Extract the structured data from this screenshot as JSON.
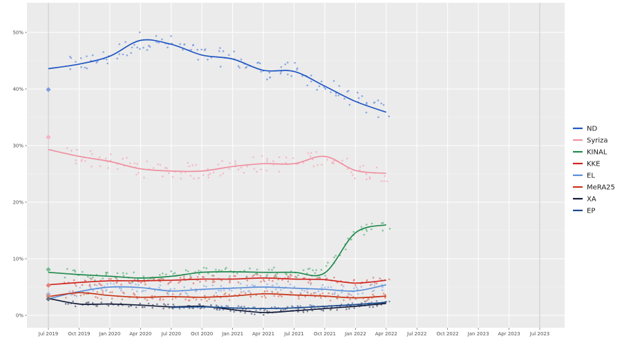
{
  "chart_data": {
    "type": "line",
    "title": "",
    "xlabel": "",
    "ylabel": "",
    "background": "#ebebeb",
    "grid": true,
    "legend_position": "right",
    "x_range": [
      "2019-07",
      "2023-09"
    ],
    "ylim": [
      -1,
      55
    ],
    "x_ticks": [
      {
        "date": "2019-07",
        "label": "Jul 2019"
      },
      {
        "date": "2019-10",
        "label": "Oct 2019"
      },
      {
        "date": "2020-01",
        "label": "Jan 2020"
      },
      {
        "date": "2020-04",
        "label": "Apr 2020"
      },
      {
        "date": "2020-07",
        "label": "Jul 2020"
      },
      {
        "date": "2020-10",
        "label": "Oct 2020"
      },
      {
        "date": "2021-01",
        "label": "Jan 2021"
      },
      {
        "date": "2021-04",
        "label": "Apr 2021"
      },
      {
        "date": "2021-07",
        "label": "Jul 2021"
      },
      {
        "date": "2021-10",
        "label": "Oct 2021"
      },
      {
        "date": "2022-01",
        "label": "Jan 2022"
      },
      {
        "date": "2022-04",
        "label": "Apr 2022"
      },
      {
        "date": "2022-07",
        "label": "Jul 2022"
      },
      {
        "date": "2022-10",
        "label": "Oct 2022"
      },
      {
        "date": "2023-01",
        "label": "Jan 2023"
      },
      {
        "date": "2023-04",
        "label": "Apr 2023"
      },
      {
        "date": "2023-07",
        "label": "Jul 2023"
      }
    ],
    "y_ticks": [
      {
        "value": 0,
        "label": "0%"
      },
      {
        "value": 10,
        "label": "10%"
      },
      {
        "value": 20,
        "label": "20%"
      },
      {
        "value": 30,
        "label": "30%"
      },
      {
        "value": 40,
        "label": "40%"
      },
      {
        "value": 50,
        "label": "50%"
      }
    ],
    "election_lines": [
      "2019-07",
      "2023-07"
    ],
    "x": [
      "2019-07",
      "2019-10",
      "2020-01",
      "2020-04",
      "2020-07",
      "2020-10",
      "2021-01",
      "2021-04",
      "2021-07",
      "2021-10",
      "2022-01",
      "2022-04"
    ],
    "series": [
      {
        "name": "ND",
        "color": "#1f56c4",
        "point_color": "#7a9be0",
        "election_result": 39.9,
        "values": [
          43.6,
          44.4,
          45.8,
          48.6,
          47.9,
          46.0,
          45.3,
          43.3,
          43.1,
          40.5,
          37.8,
          35.9
        ]
      },
      {
        "name": "Syriza",
        "color": "#ef8fa0",
        "point_color": "#f4b3c0",
        "election_result": 31.5,
        "values": [
          29.3,
          28.1,
          27.2,
          25.9,
          25.5,
          25.5,
          26.3,
          26.8,
          26.8,
          28.1,
          25.6,
          25.1
        ]
      },
      {
        "name": "KINAL",
        "color": "#1f8a4d",
        "point_color": "#72bb8d",
        "election_result": 8.1,
        "values": [
          7.6,
          7.2,
          6.9,
          6.6,
          6.9,
          7.6,
          7.7,
          7.6,
          7.6,
          7.5,
          14.6,
          16.0
        ]
      },
      {
        "name": "KKE",
        "color": "#d0231d",
        "point_color": "#e27f7a",
        "election_result": 5.3,
        "values": [
          5.4,
          5.8,
          6.1,
          6.1,
          6.2,
          6.4,
          6.4,
          6.6,
          6.4,
          6.3,
          5.7,
          6.2
        ]
      },
      {
        "name": "EL",
        "color": "#5b8ed8",
        "point_color": "#9bb9e6",
        "election_result": 3.7,
        "values": [
          2.9,
          4.2,
          5.0,
          4.9,
          4.3,
          4.6,
          4.8,
          5.0,
          4.8,
          4.6,
          4.3,
          5.4
        ]
      },
      {
        "name": "MeRA25",
        "color": "#c73418",
        "point_color": "#de8a75",
        "election_result": 3.4,
        "values": [
          3.3,
          4.0,
          3.5,
          3.2,
          3.3,
          3.2,
          3.4,
          3.8,
          3.6,
          3.4,
          3.1,
          3.4
        ]
      },
      {
        "name": "XA",
        "color": "#121a38",
        "point_color": "#6a6f82",
        "election_result": 2.9,
        "values": [
          3.0,
          2.0,
          2.0,
          1.8,
          1.5,
          1.6,
          1.0,
          0.5,
          0.8,
          1.2,
          1.6,
          2.1
        ]
      },
      {
        "name": "EP",
        "color": "#1c4a8c",
        "point_color": "#6c8bba",
        "election_result": null,
        "values": [
          null,
          null,
          null,
          null,
          1.4,
          1.5,
          1.3,
          1.2,
          1.3,
          1.6,
          1.9,
          2.3
        ]
      }
    ]
  }
}
